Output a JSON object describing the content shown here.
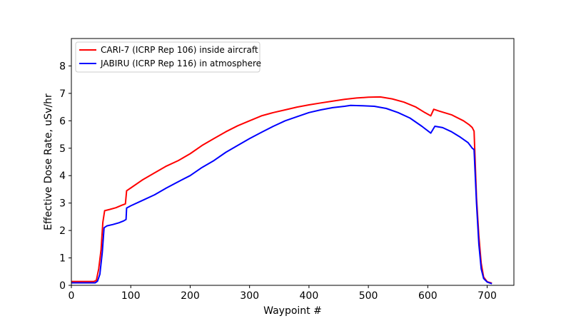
{
  "chart_data": {
    "type": "line",
    "title": "",
    "xlabel": "Waypoint #",
    "ylabel": "Effective Dose Rate, uSv/hr",
    "xlim": [
      0,
      745
    ],
    "ylim": [
      0,
      9
    ],
    "xticks": [
      0,
      100,
      200,
      300,
      400,
      500,
      600,
      700
    ],
    "yticks": [
      0,
      1,
      2,
      3,
      4,
      5,
      6,
      7,
      8
    ],
    "grid": false,
    "legend_position": "top-left",
    "series": [
      {
        "name": "CARI-7 (ICRP Rep 106) inside aircraft",
        "color": "#ff0000",
        "points": [
          [
            0,
            0.14
          ],
          [
            38,
            0.14
          ],
          [
            42,
            0.18
          ],
          [
            46,
            0.6
          ],
          [
            50,
            1.3
          ],
          [
            53,
            2.3
          ],
          [
            56,
            2.72
          ],
          [
            65,
            2.77
          ],
          [
            75,
            2.83
          ],
          [
            85,
            2.92
          ],
          [
            91,
            2.97
          ],
          [
            93,
            3.45
          ],
          [
            100,
            3.55
          ],
          [
            120,
            3.85
          ],
          [
            140,
            4.1
          ],
          [
            160,
            4.35
          ],
          [
            180,
            4.55
          ],
          [
            200,
            4.8
          ],
          [
            220,
            5.1
          ],
          [
            240,
            5.35
          ],
          [
            260,
            5.6
          ],
          [
            280,
            5.82
          ],
          [
            300,
            6.0
          ],
          [
            320,
            6.18
          ],
          [
            340,
            6.3
          ],
          [
            360,
            6.4
          ],
          [
            380,
            6.5
          ],
          [
            400,
            6.58
          ],
          [
            420,
            6.65
          ],
          [
            440,
            6.72
          ],
          [
            460,
            6.78
          ],
          [
            480,
            6.83
          ],
          [
            500,
            6.86
          ],
          [
            520,
            6.87
          ],
          [
            540,
            6.8
          ],
          [
            560,
            6.68
          ],
          [
            580,
            6.5
          ],
          [
            595,
            6.3
          ],
          [
            605,
            6.18
          ],
          [
            610,
            6.42
          ],
          [
            620,
            6.35
          ],
          [
            640,
            6.22
          ],
          [
            660,
            6.0
          ],
          [
            670,
            5.85
          ],
          [
            675,
            5.75
          ],
          [
            678,
            5.62
          ],
          [
            682,
            3.2
          ],
          [
            686,
            1.8
          ],
          [
            690,
            0.8
          ],
          [
            694,
            0.3
          ],
          [
            700,
            0.13
          ],
          [
            708,
            0.08
          ]
        ]
      },
      {
        "name": "JABIRU (ICRP Rep 116) in atmosphere",
        "color": "#0000ff",
        "points": [
          [
            0,
            0.09
          ],
          [
            40,
            0.09
          ],
          [
            44,
            0.15
          ],
          [
            48,
            0.4
          ],
          [
            52,
            1.2
          ],
          [
            55,
            2.1
          ],
          [
            60,
            2.17
          ],
          [
            70,
            2.22
          ],
          [
            80,
            2.28
          ],
          [
            88,
            2.35
          ],
          [
            92,
            2.4
          ],
          [
            93,
            2.82
          ],
          [
            100,
            2.9
          ],
          [
            120,
            3.1
          ],
          [
            140,
            3.3
          ],
          [
            160,
            3.55
          ],
          [
            180,
            3.78
          ],
          [
            200,
            4.0
          ],
          [
            220,
            4.3
          ],
          [
            240,
            4.55
          ],
          [
            260,
            4.85
          ],
          [
            280,
            5.1
          ],
          [
            300,
            5.35
          ],
          [
            320,
            5.58
          ],
          [
            340,
            5.8
          ],
          [
            360,
            6.0
          ],
          [
            380,
            6.15
          ],
          [
            400,
            6.3
          ],
          [
            420,
            6.4
          ],
          [
            440,
            6.48
          ],
          [
            460,
            6.53
          ],
          [
            470,
            6.56
          ],
          [
            490,
            6.55
          ],
          [
            510,
            6.53
          ],
          [
            530,
            6.45
          ],
          [
            550,
            6.3
          ],
          [
            570,
            6.1
          ],
          [
            590,
            5.8
          ],
          [
            605,
            5.55
          ],
          [
            612,
            5.8
          ],
          [
            625,
            5.75
          ],
          [
            640,
            5.6
          ],
          [
            655,
            5.4
          ],
          [
            668,
            5.2
          ],
          [
            675,
            5.0
          ],
          [
            678,
            4.95
          ],
          [
            682,
            3.0
          ],
          [
            686,
            1.5
          ],
          [
            690,
            0.6
          ],
          [
            694,
            0.25
          ],
          [
            700,
            0.12
          ],
          [
            708,
            0.06
          ]
        ]
      }
    ]
  }
}
